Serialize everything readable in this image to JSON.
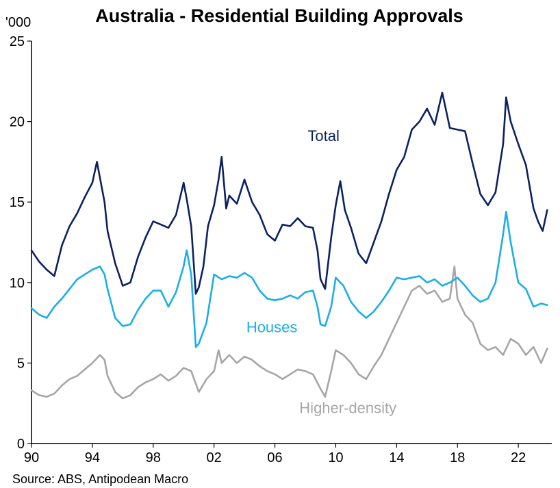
{
  "chart_data": {
    "type": "line",
    "title": "Australia - Residential Building Approvals",
    "ylabel": "'000",
    "ylim": [
      0,
      25
    ],
    "yticks": [
      "0",
      "5",
      "10",
      "15",
      "20",
      "25"
    ],
    "xlim": [
      1990,
      2024.2
    ],
    "xticks": [
      {
        "x": 1990,
        "label": "90"
      },
      {
        "x": 1994,
        "label": "94"
      },
      {
        "x": 1998,
        "label": "98"
      },
      {
        "x": 2002,
        "label": "02"
      },
      {
        "x": 2006,
        "label": "06"
      },
      {
        "x": 2010,
        "label": "10"
      },
      {
        "x": 2014,
        "label": "14"
      },
      {
        "x": 2018,
        "label": "18"
      },
      {
        "x": 2022,
        "label": "22"
      }
    ],
    "source": "Source: ABS, Antipodean Macro",
    "grid": false,
    "series": [
      {
        "name": "Total",
        "color": "#0b2161",
        "x": [
          1990.0,
          1990.5,
          1991.0,
          1991.5,
          1992.0,
          1992.5,
          1993.0,
          1993.5,
          1994.0,
          1994.3,
          1994.5,
          1994.8,
          1995.0,
          1995.5,
          1996.0,
          1996.5,
          1997.0,
          1997.5,
          1998.0,
          1998.5,
          1999.0,
          1999.5,
          2000.0,
          2000.2,
          2000.5,
          2000.8,
          2001.0,
          2001.3,
          2001.6,
          2002.0,
          2002.3,
          2002.5,
          2002.8,
          2003.0,
          2003.5,
          2004.0,
          2004.5,
          2005.0,
          2005.5,
          2006.0,
          2006.5,
          2007.0,
          2007.5,
          2008.0,
          2008.5,
          2008.8,
          2009.0,
          2009.3,
          2009.7,
          2010.0,
          2010.3,
          2010.6,
          2011.0,
          2011.5,
          2012.0,
          2012.5,
          2013.0,
          2013.5,
          2014.0,
          2014.5,
          2015.0,
          2015.5,
          2016.0,
          2016.5,
          2017.0,
          2017.5,
          2018.0,
          2018.5,
          2019.0,
          2019.5,
          2020.0,
          2020.5,
          2021.0,
          2021.2,
          2021.5,
          2022.0,
          2022.5,
          2023.0,
          2023.3,
          2023.6,
          2023.9
        ],
        "values": [
          12.0,
          11.3,
          10.8,
          10.4,
          12.3,
          13.5,
          14.3,
          15.3,
          16.2,
          17.5,
          16.5,
          15.0,
          13.2,
          11.2,
          9.8,
          10.0,
          11.6,
          12.8,
          13.8,
          13.6,
          13.4,
          14.2,
          16.2,
          15.2,
          13.5,
          9.3,
          9.7,
          11.0,
          13.5,
          14.8,
          16.4,
          17.8,
          14.6,
          15.4,
          14.9,
          16.4,
          15.0,
          14.2,
          13.0,
          12.6,
          13.6,
          13.5,
          14.0,
          13.5,
          13.4,
          12.0,
          10.2,
          9.6,
          12.8,
          14.8,
          16.3,
          14.5,
          13.4,
          11.8,
          11.2,
          12.5,
          13.8,
          15.5,
          17.0,
          17.8,
          19.5,
          20.0,
          20.8,
          19.8,
          21.8,
          19.6,
          19.5,
          19.4,
          17.4,
          15.5,
          14.8,
          15.6,
          18.6,
          21.5,
          20.0,
          18.6,
          17.3,
          14.6,
          13.8,
          13.2,
          14.5
        ]
      },
      {
        "name": "Houses",
        "color": "#1aaee8",
        "x": [
          1990.0,
          1990.5,
          1991.0,
          1991.5,
          1992.0,
          1992.5,
          1993.0,
          1993.5,
          1994.0,
          1994.5,
          1994.8,
          1995.0,
          1995.5,
          1996.0,
          1996.5,
          1997.0,
          1997.5,
          1998.0,
          1998.5,
          1999.0,
          1999.5,
          2000.0,
          2000.2,
          2000.5,
          2000.8,
          2001.0,
          2001.5,
          2002.0,
          2002.5,
          2003.0,
          2003.5,
          2004.0,
          2004.5,
          2005.0,
          2005.5,
          2006.0,
          2006.5,
          2007.0,
          2007.5,
          2008.0,
          2008.5,
          2008.8,
          2009.0,
          2009.3,
          2009.7,
          2010.0,
          2010.5,
          2011.0,
          2011.5,
          2012.0,
          2012.5,
          2013.0,
          2013.5,
          2014.0,
          2014.5,
          2015.0,
          2015.5,
          2016.0,
          2016.5,
          2017.0,
          2017.5,
          2018.0,
          2018.5,
          2019.0,
          2019.5,
          2020.0,
          2020.5,
          2021.0,
          2021.2,
          2021.5,
          2022.0,
          2022.5,
          2023.0,
          2023.5,
          2023.9
        ],
        "values": [
          8.4,
          8.0,
          7.8,
          8.5,
          9.0,
          9.6,
          10.2,
          10.5,
          10.8,
          11.0,
          10.5,
          9.6,
          7.8,
          7.3,
          7.4,
          8.3,
          9.0,
          9.5,
          9.5,
          8.5,
          9.4,
          11.0,
          12.0,
          10.5,
          6.0,
          6.2,
          7.5,
          10.5,
          10.2,
          10.4,
          10.3,
          10.6,
          10.3,
          9.5,
          9.0,
          8.9,
          9.0,
          9.2,
          9.0,
          9.4,
          9.5,
          8.5,
          7.4,
          7.3,
          8.5,
          10.3,
          9.8,
          8.8,
          8.2,
          7.8,
          8.2,
          8.8,
          9.5,
          10.3,
          10.2,
          10.3,
          10.4,
          10.0,
          10.2,
          9.8,
          10.0,
          10.3,
          9.8,
          9.2,
          8.8,
          9.0,
          10.0,
          13.0,
          14.4,
          12.5,
          10.0,
          9.6,
          8.5,
          8.7,
          8.6
        ]
      },
      {
        "name": "Higher-density",
        "color": "#a6a6a6",
        "x": [
          1990.0,
          1990.5,
          1991.0,
          1991.5,
          1992.0,
          1992.5,
          1993.0,
          1993.5,
          1994.0,
          1994.5,
          1994.8,
          1995.0,
          1995.5,
          1996.0,
          1996.5,
          1997.0,
          1997.5,
          1998.0,
          1998.5,
          1999.0,
          1999.5,
          2000.0,
          2000.5,
          2001.0,
          2001.5,
          2002.0,
          2002.3,
          2002.5,
          2003.0,
          2003.5,
          2004.0,
          2004.5,
          2005.0,
          2005.5,
          2006.0,
          2006.5,
          2007.0,
          2007.5,
          2008.0,
          2008.5,
          2009.0,
          2009.3,
          2009.7,
          2010.0,
          2010.5,
          2011.0,
          2011.5,
          2012.0,
          2012.5,
          2013.0,
          2013.5,
          2014.0,
          2014.5,
          2015.0,
          2015.5,
          2016.0,
          2016.5,
          2017.0,
          2017.5,
          2017.8,
          2018.0,
          2018.5,
          2019.0,
          2019.5,
          2020.0,
          2020.5,
          2021.0,
          2021.5,
          2022.0,
          2022.5,
          2023.0,
          2023.5,
          2023.9
        ],
        "values": [
          3.3,
          3.0,
          2.9,
          3.1,
          3.6,
          4.0,
          4.2,
          4.6,
          5.0,
          5.5,
          5.2,
          4.2,
          3.2,
          2.8,
          3.0,
          3.5,
          3.8,
          4.0,
          4.3,
          3.9,
          4.2,
          4.7,
          4.5,
          3.2,
          4.0,
          4.5,
          5.8,
          5.0,
          5.5,
          5.0,
          5.4,
          5.2,
          4.8,
          4.5,
          4.3,
          4.0,
          4.3,
          4.6,
          4.5,
          4.3,
          3.4,
          2.9,
          4.5,
          5.8,
          5.5,
          5.0,
          4.3,
          4.0,
          4.8,
          5.5,
          6.5,
          7.5,
          8.5,
          9.5,
          9.8,
          9.3,
          9.5,
          8.8,
          9.0,
          11.0,
          9.0,
          8.0,
          7.5,
          6.2,
          5.8,
          6.0,
          5.5,
          6.5,
          6.2,
          5.5,
          6.0,
          5.0,
          5.9
        ]
      }
    ],
    "series_labels": [
      {
        "text": "Total",
        "x": 2009.2,
        "y": 18.8,
        "color": "#0b2161"
      },
      {
        "text": "Houses",
        "x": 2005.8,
        "y": 6.9,
        "color": "#1aaee8"
      },
      {
        "text": "Higher-density",
        "x": 2010.8,
        "y": 1.9,
        "color": "#a6a6a6"
      }
    ]
  }
}
